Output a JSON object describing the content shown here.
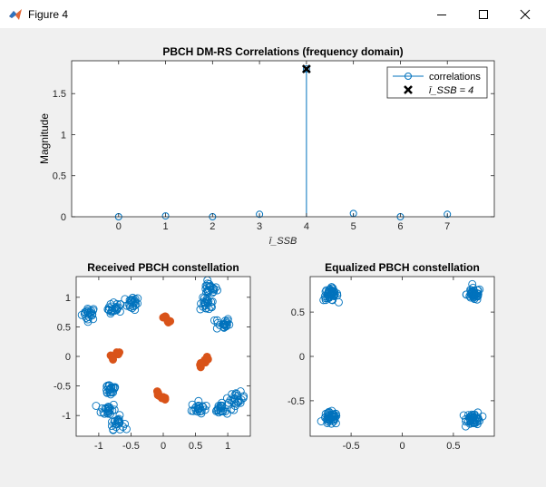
{
  "window": {
    "title": "Figure 4",
    "buttons": [
      "minimize",
      "maximize",
      "close"
    ],
    "icon": "matlab-icon"
  },
  "chart_data": [
    {
      "type": "stem",
      "title": "PBCH DM-RS Correlations (frequency domain)",
      "ylabel": "Magnitude",
      "xlabel": "ī_SSB",
      "xlim": [
        -1,
        8
      ],
      "ylim": [
        0,
        1.9
      ],
      "xticks": [
        "0",
        "1",
        "2",
        "3",
        "4",
        "5",
        "6",
        "7"
      ],
      "yticks": [
        "0",
        "0.5",
        "1",
        "1.5"
      ],
      "x": [
        0,
        1,
        2,
        3,
        4,
        5,
        6,
        7
      ],
      "values": [
        0.0,
        0.01,
        0.0,
        0.03,
        1.8,
        0.04,
        0.0,
        0.03
      ],
      "series_color": "#0072bd",
      "marker_point": {
        "x": 4,
        "y": 1.8,
        "color": "#000000"
      },
      "legend": {
        "position": "top-right",
        "entries": [
          "correlations",
          "ī_SSB = 4"
        ]
      }
    },
    {
      "type": "scatter",
      "title": "Received PBCH constellation",
      "xlim": [
        -1.35,
        1.35
      ],
      "ylim": [
        -1.35,
        1.35
      ],
      "xticks": [
        "-1",
        "-0.5",
        "0",
        "0.5",
        "1"
      ],
      "yticks": [
        "-1",
        "-0.5",
        "0",
        "0.5",
        "1"
      ],
      "clusters_blue": [
        [
          -1.15,
          0.73
        ],
        [
          -0.75,
          0.8
        ],
        [
          -0.48,
          0.9
        ],
        [
          0.72,
          1.15
        ],
        [
          0.68,
          0.88
        ],
        [
          0.92,
          0.55
        ],
        [
          -0.82,
          -0.55
        ],
        [
          -0.85,
          -0.9
        ],
        [
          -0.72,
          -1.12
        ],
        [
          0.55,
          -0.88
        ],
        [
          0.9,
          -0.88
        ],
        [
          1.15,
          -0.72
        ]
      ],
      "clusters_orange": [
        [
          0.02,
          0.66
        ],
        [
          0.08,
          0.6
        ],
        [
          -0.7,
          0.06
        ],
        [
          -0.78,
          -0.01
        ],
        [
          0.66,
          -0.05
        ],
        [
          0.6,
          -0.14
        ],
        [
          -0.08,
          -0.63
        ],
        [
          0.01,
          -0.7
        ]
      ],
      "blue_color": "#0072bd",
      "orange_color": "#d95319"
    },
    {
      "type": "scatter",
      "title": "Equalized PBCH constellation",
      "xlim": [
        -0.9,
        0.9
      ],
      "ylim": [
        -0.9,
        0.9
      ],
      "xticks": [
        "-0.5",
        "0",
        "0.5"
      ],
      "yticks": [
        "-0.5",
        "0",
        "0.5"
      ],
      "clusters_blue": [
        [
          -0.7,
          0.7
        ],
        [
          0.7,
          0.7
        ],
        [
          -0.7,
          -0.7
        ],
        [
          0.7,
          -0.7
        ]
      ],
      "blue_color": "#0072bd"
    }
  ]
}
